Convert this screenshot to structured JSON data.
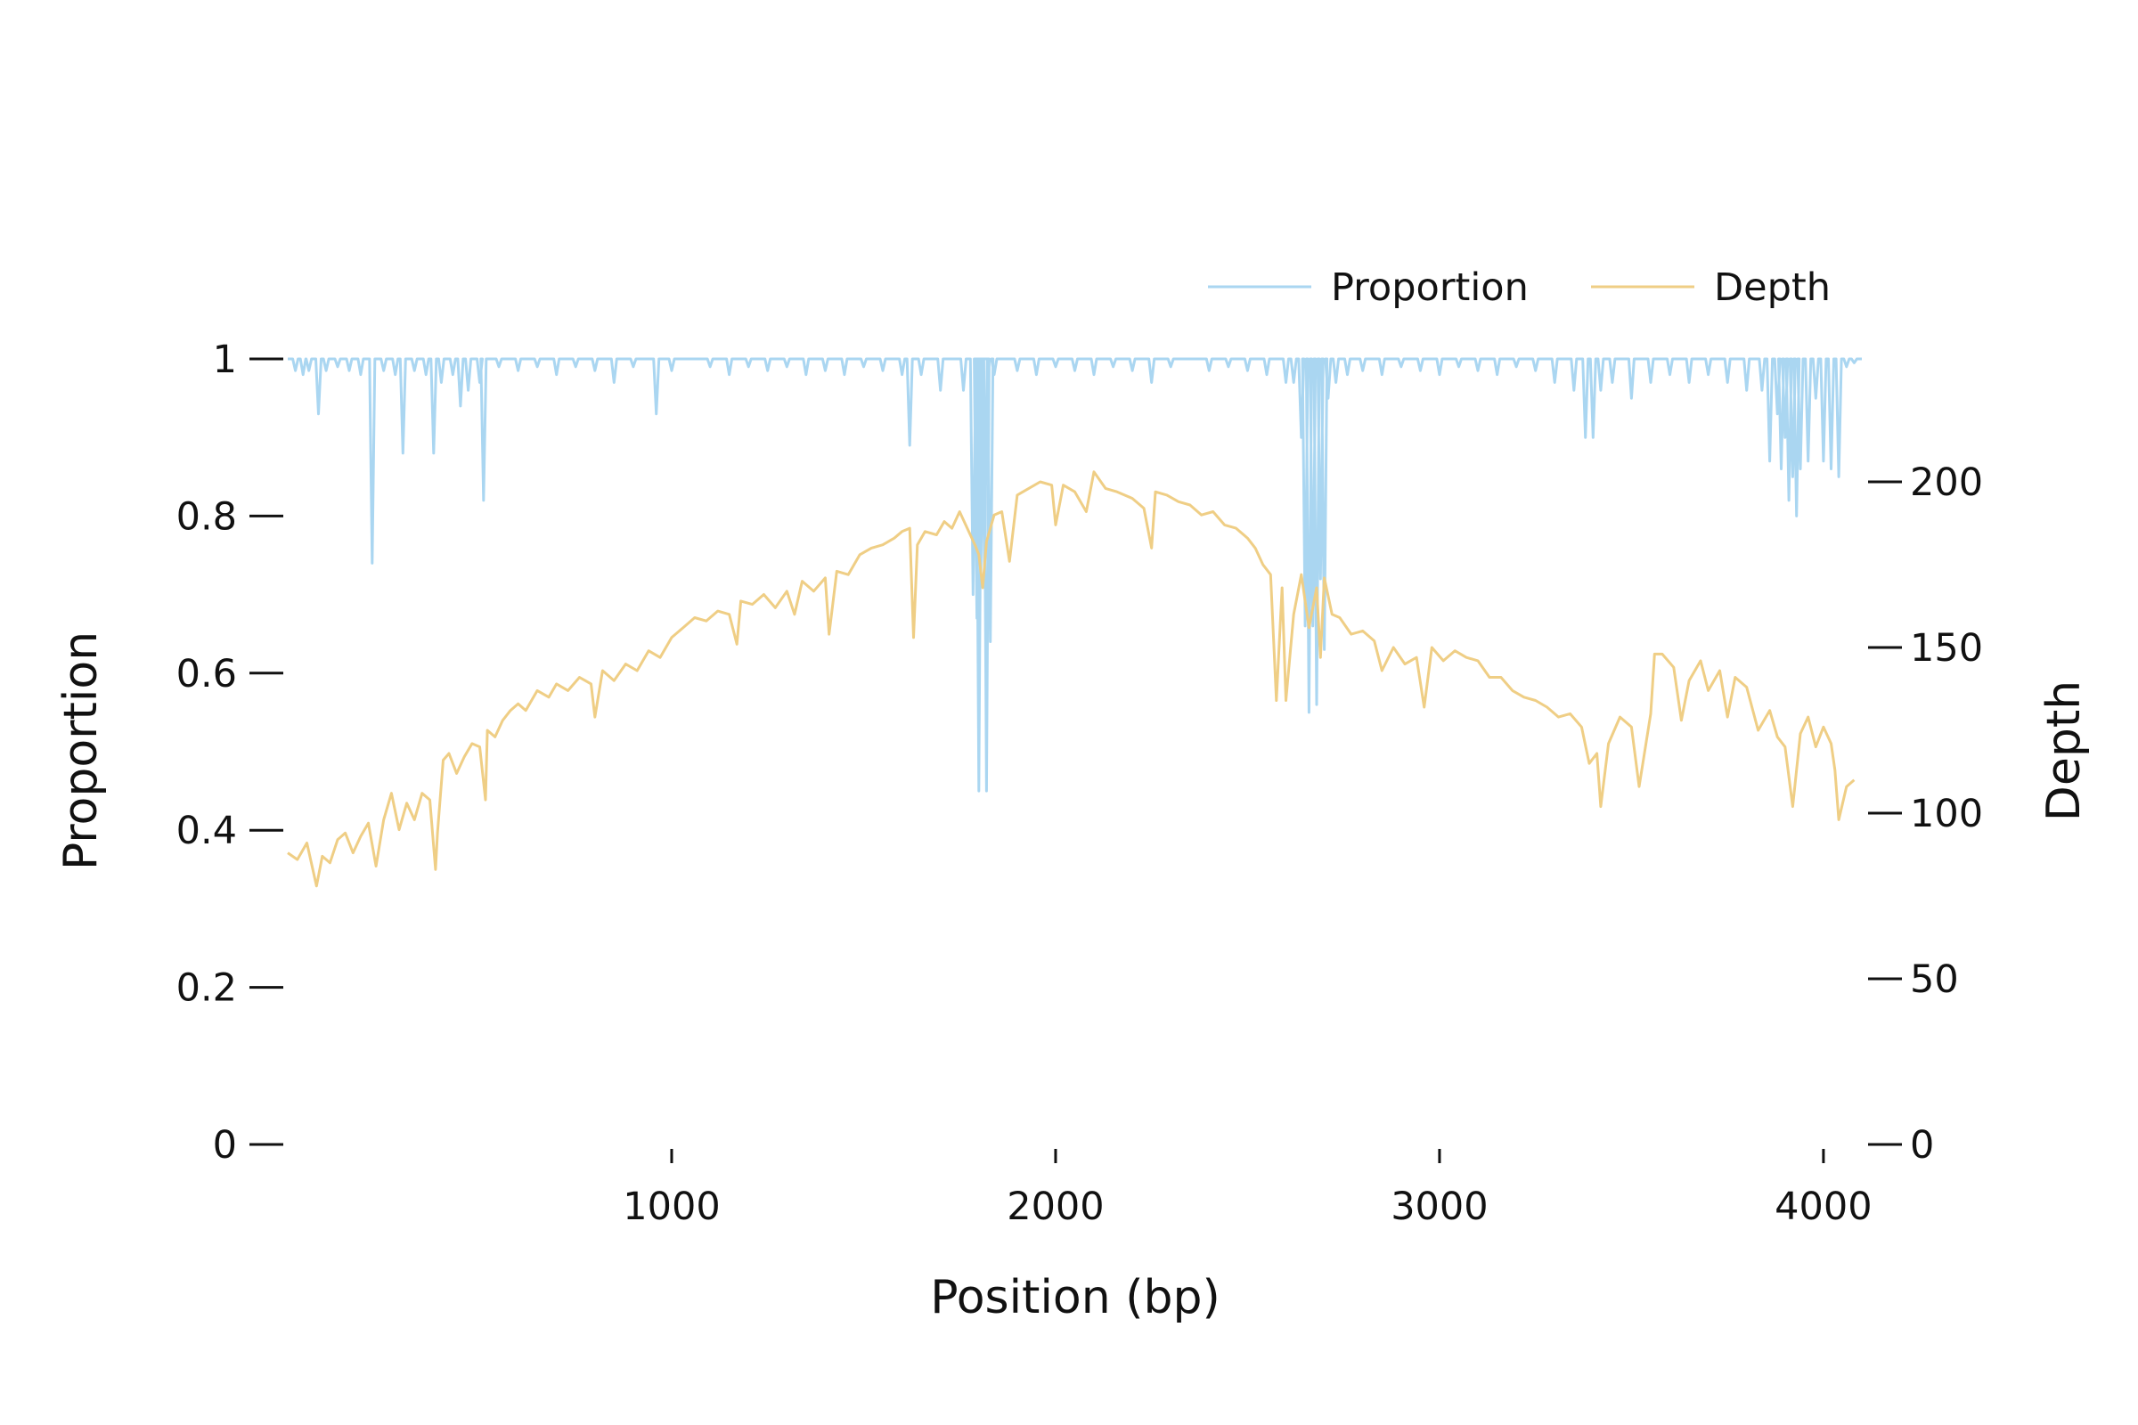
{
  "chart_data": {
    "type": "line",
    "dual_axis": true,
    "xlabel": "Position (bp)",
    "ylabel_left": "Proportion",
    "ylabel_right": "Depth",
    "xlim": [
      0,
      4100
    ],
    "ylim_left": [
      0,
      1
    ],
    "ylim_right": [
      0,
      237
    ],
    "x_ticks": [
      "1000",
      "2000",
      "3000",
      "4000"
    ],
    "y_left_ticks": [
      "0",
      "0.2",
      "0.4",
      "0.6",
      "0.8",
      "1"
    ],
    "y_right_ticks": [
      "0",
      "50",
      "100",
      "150",
      "200"
    ],
    "grid": false,
    "legend_position": "top-right",
    "colors": {
      "proportion": "#aad6f1",
      "depth": "#efce85",
      "text": "#111111"
    },
    "series": [
      {
        "name": "Proportion",
        "axis": "left",
        "baseline": 1.0,
        "dips": [
          [
            20,
            0.985
          ],
          [
            40,
            0.98
          ],
          [
            55,
            0.985
          ],
          [
            80,
            0.93
          ],
          [
            100,
            0.985
          ],
          [
            130,
            0.99
          ],
          [
            160,
            0.985
          ],
          [
            190,
            0.98
          ],
          [
            220,
            0.74
          ],
          [
            250,
            0.985
          ],
          [
            280,
            0.98
          ],
          [
            300,
            0.88
          ],
          [
            330,
            0.985
          ],
          [
            360,
            0.98
          ],
          [
            380,
            0.88
          ],
          [
            400,
            0.97
          ],
          [
            430,
            0.98
          ],
          [
            450,
            0.94
          ],
          [
            470,
            0.96
          ],
          [
            500,
            0.97
          ],
          [
            510,
            0.82
          ],
          [
            550,
            0.99
          ],
          [
            600,
            0.985
          ],
          [
            650,
            0.99
          ],
          [
            700,
            0.98
          ],
          [
            750,
            0.99
          ],
          [
            800,
            0.985
          ],
          [
            850,
            0.97
          ],
          [
            900,
            0.99
          ],
          [
            960,
            0.93
          ],
          [
            1000,
            0.985
          ],
          [
            1100,
            0.99
          ],
          [
            1150,
            0.98
          ],
          [
            1200,
            0.99
          ],
          [
            1250,
            0.985
          ],
          [
            1300,
            0.99
          ],
          [
            1350,
            0.98
          ],
          [
            1400,
            0.985
          ],
          [
            1450,
            0.98
          ],
          [
            1500,
            0.99
          ],
          [
            1550,
            0.985
          ],
          [
            1600,
            0.98
          ],
          [
            1620,
            0.89
          ],
          [
            1650,
            0.98
          ],
          [
            1700,
            0.96
          ],
          [
            1760,
            0.96
          ],
          [
            1785,
            0.7
          ],
          [
            1795,
            0.67
          ],
          [
            1800,
            0.45
          ],
          [
            1805,
            0.71
          ],
          [
            1815,
            0.72
          ],
          [
            1820,
            0.45
          ],
          [
            1830,
            0.64
          ],
          [
            1840,
            0.98
          ],
          [
            1900,
            0.985
          ],
          [
            1950,
            0.98
          ],
          [
            2000,
            0.99
          ],
          [
            2050,
            0.985
          ],
          [
            2100,
            0.98
          ],
          [
            2150,
            0.99
          ],
          [
            2200,
            0.985
          ],
          [
            2250,
            0.97
          ],
          [
            2300,
            0.99
          ],
          [
            2400,
            0.985
          ],
          [
            2450,
            0.99
          ],
          [
            2500,
            0.985
          ],
          [
            2550,
            0.98
          ],
          [
            2600,
            0.97
          ],
          [
            2620,
            0.97
          ],
          [
            2640,
            0.9
          ],
          [
            2650,
            0.66
          ],
          [
            2660,
            0.55
          ],
          [
            2670,
            0.66
          ],
          [
            2680,
            0.56
          ],
          [
            2690,
            0.72
          ],
          [
            2700,
            0.63
          ],
          [
            2710,
            0.95
          ],
          [
            2730,
            0.97
          ],
          [
            2760,
            0.98
          ],
          [
            2800,
            0.985
          ],
          [
            2850,
            0.98
          ],
          [
            2900,
            0.99
          ],
          [
            2950,
            0.985
          ],
          [
            3000,
            0.98
          ],
          [
            3050,
            0.99
          ],
          [
            3100,
            0.985
          ],
          [
            3150,
            0.98
          ],
          [
            3200,
            0.99
          ],
          [
            3250,
            0.985
          ],
          [
            3300,
            0.97
          ],
          [
            3350,
            0.96
          ],
          [
            3380,
            0.9
          ],
          [
            3400,
            0.9
          ],
          [
            3420,
            0.96
          ],
          [
            3450,
            0.97
          ],
          [
            3500,
            0.95
          ],
          [
            3550,
            0.97
          ],
          [
            3600,
            0.98
          ],
          [
            3650,
            0.97
          ],
          [
            3700,
            0.98
          ],
          [
            3750,
            0.97
          ],
          [
            3800,
            0.96
          ],
          [
            3840,
            0.96
          ],
          [
            3860,
            0.87
          ],
          [
            3880,
            0.93
          ],
          [
            3890,
            0.86
          ],
          [
            3900,
            0.9
          ],
          [
            3910,
            0.82
          ],
          [
            3920,
            0.85
          ],
          [
            3930,
            0.8
          ],
          [
            3940,
            0.86
          ],
          [
            3960,
            0.87
          ],
          [
            3980,
            0.95
          ],
          [
            4000,
            0.87
          ],
          [
            4020,
            0.86
          ],
          [
            4040,
            0.85
          ],
          [
            4060,
            0.99
          ],
          [
            4080,
            0.995
          ]
        ]
      },
      {
        "name": "Depth",
        "axis": "right",
        "points": [
          [
            0,
            88
          ],
          [
            25,
            86
          ],
          [
            50,
            91
          ],
          [
            75,
            78
          ],
          [
            90,
            87
          ],
          [
            110,
            85
          ],
          [
            130,
            92
          ],
          [
            150,
            94
          ],
          [
            170,
            88
          ],
          [
            190,
            93
          ],
          [
            210,
            97
          ],
          [
            230,
            84
          ],
          [
            250,
            98
          ],
          [
            270,
            106
          ],
          [
            290,
            95
          ],
          [
            310,
            103
          ],
          [
            330,
            98
          ],
          [
            350,
            106
          ],
          [
            370,
            104
          ],
          [
            385,
            83
          ],
          [
            390,
            94
          ],
          [
            405,
            116
          ],
          [
            420,
            118
          ],
          [
            440,
            112
          ],
          [
            460,
            117
          ],
          [
            480,
            121
          ],
          [
            500,
            120
          ],
          [
            515,
            104
          ],
          [
            520,
            125
          ],
          [
            540,
            123
          ],
          [
            560,
            128
          ],
          [
            580,
            131
          ],
          [
            600,
            133
          ],
          [
            620,
            131
          ],
          [
            650,
            137
          ],
          [
            680,
            135
          ],
          [
            700,
            139
          ],
          [
            730,
            137
          ],
          [
            760,
            141
          ],
          [
            790,
            139
          ],
          [
            800,
            129
          ],
          [
            820,
            143
          ],
          [
            850,
            140
          ],
          [
            880,
            145
          ],
          [
            910,
            143
          ],
          [
            940,
            149
          ],
          [
            970,
            147
          ],
          [
            1000,
            153
          ],
          [
            1030,
            156
          ],
          [
            1060,
            159
          ],
          [
            1090,
            158
          ],
          [
            1120,
            161
          ],
          [
            1150,
            160
          ],
          [
            1170,
            151
          ],
          [
            1180,
            164
          ],
          [
            1210,
            163
          ],
          [
            1240,
            166
          ],
          [
            1270,
            162
          ],
          [
            1300,
            167
          ],
          [
            1320,
            160
          ],
          [
            1340,
            170
          ],
          [
            1370,
            167
          ],
          [
            1400,
            171
          ],
          [
            1410,
            154
          ],
          [
            1430,
            173
          ],
          [
            1460,
            172
          ],
          [
            1490,
            178
          ],
          [
            1520,
            180
          ],
          [
            1550,
            181
          ],
          [
            1580,
            183
          ],
          [
            1600,
            185
          ],
          [
            1620,
            186
          ],
          [
            1630,
            153
          ],
          [
            1640,
            181
          ],
          [
            1660,
            185
          ],
          [
            1690,
            184
          ],
          [
            1710,
            188
          ],
          [
            1730,
            186
          ],
          [
            1750,
            191
          ],
          [
            1770,
            186
          ],
          [
            1790,
            181
          ],
          [
            1800,
            178
          ],
          [
            1810,
            168
          ],
          [
            1820,
            182
          ],
          [
            1840,
            190
          ],
          [
            1860,
            191
          ],
          [
            1880,
            176
          ],
          [
            1900,
            196
          ],
          [
            1930,
            198
          ],
          [
            1960,
            200
          ],
          [
            1990,
            199
          ],
          [
            2000,
            187
          ],
          [
            2020,
            199
          ],
          [
            2050,
            197
          ],
          [
            2080,
            191
          ],
          [
            2100,
            203
          ],
          [
            2130,
            198
          ],
          [
            2160,
            197
          ],
          [
            2200,
            195
          ],
          [
            2230,
            192
          ],
          [
            2250,
            180
          ],
          [
            2260,
            197
          ],
          [
            2290,
            196
          ],
          [
            2320,
            194
          ],
          [
            2350,
            193
          ],
          [
            2380,
            190
          ],
          [
            2410,
            191
          ],
          [
            2440,
            187
          ],
          [
            2470,
            186
          ],
          [
            2500,
            183
          ],
          [
            2520,
            180
          ],
          [
            2540,
            175
          ],
          [
            2560,
            172
          ],
          [
            2575,
            134
          ],
          [
            2590,
            168
          ],
          [
            2600,
            134
          ],
          [
            2620,
            160
          ],
          [
            2640,
            172
          ],
          [
            2660,
            156
          ],
          [
            2680,
            168
          ],
          [
            2690,
            147
          ],
          [
            2700,
            171
          ],
          [
            2720,
            160
          ],
          [
            2740,
            159
          ],
          [
            2770,
            154
          ],
          [
            2800,
            155
          ],
          [
            2830,
            152
          ],
          [
            2850,
            143
          ],
          [
            2880,
            150
          ],
          [
            2910,
            145
          ],
          [
            2940,
            147
          ],
          [
            2960,
            132
          ],
          [
            2980,
            150
          ],
          [
            3010,
            146
          ],
          [
            3040,
            149
          ],
          [
            3070,
            147
          ],
          [
            3100,
            146
          ],
          [
            3130,
            141
          ],
          [
            3160,
            141
          ],
          [
            3190,
            137
          ],
          [
            3220,
            135
          ],
          [
            3250,
            134
          ],
          [
            3280,
            132
          ],
          [
            3310,
            129
          ],
          [
            3340,
            130
          ],
          [
            3370,
            126
          ],
          [
            3390,
            115
          ],
          [
            3410,
            118
          ],
          [
            3420,
            102
          ],
          [
            3440,
            121
          ],
          [
            3470,
            129
          ],
          [
            3500,
            126
          ],
          [
            3520,
            108
          ],
          [
            3550,
            130
          ],
          [
            3560,
            148
          ],
          [
            3580,
            148
          ],
          [
            3610,
            144
          ],
          [
            3630,
            128
          ],
          [
            3650,
            140
          ],
          [
            3680,
            146
          ],
          [
            3700,
            137
          ],
          [
            3730,
            143
          ],
          [
            3750,
            129
          ],
          [
            3770,
            141
          ],
          [
            3800,
            138
          ],
          [
            3830,
            125
          ],
          [
            3860,
            131
          ],
          [
            3880,
            123
          ],
          [
            3900,
            120
          ],
          [
            3910,
            111
          ],
          [
            3920,
            102
          ],
          [
            3940,
            124
          ],
          [
            3960,
            129
          ],
          [
            3980,
            120
          ],
          [
            4000,
            126
          ],
          [
            4020,
            121
          ],
          [
            4030,
            113
          ],
          [
            4040,
            98
          ],
          [
            4060,
            108
          ],
          [
            4080,
            110
          ]
        ]
      }
    ]
  }
}
